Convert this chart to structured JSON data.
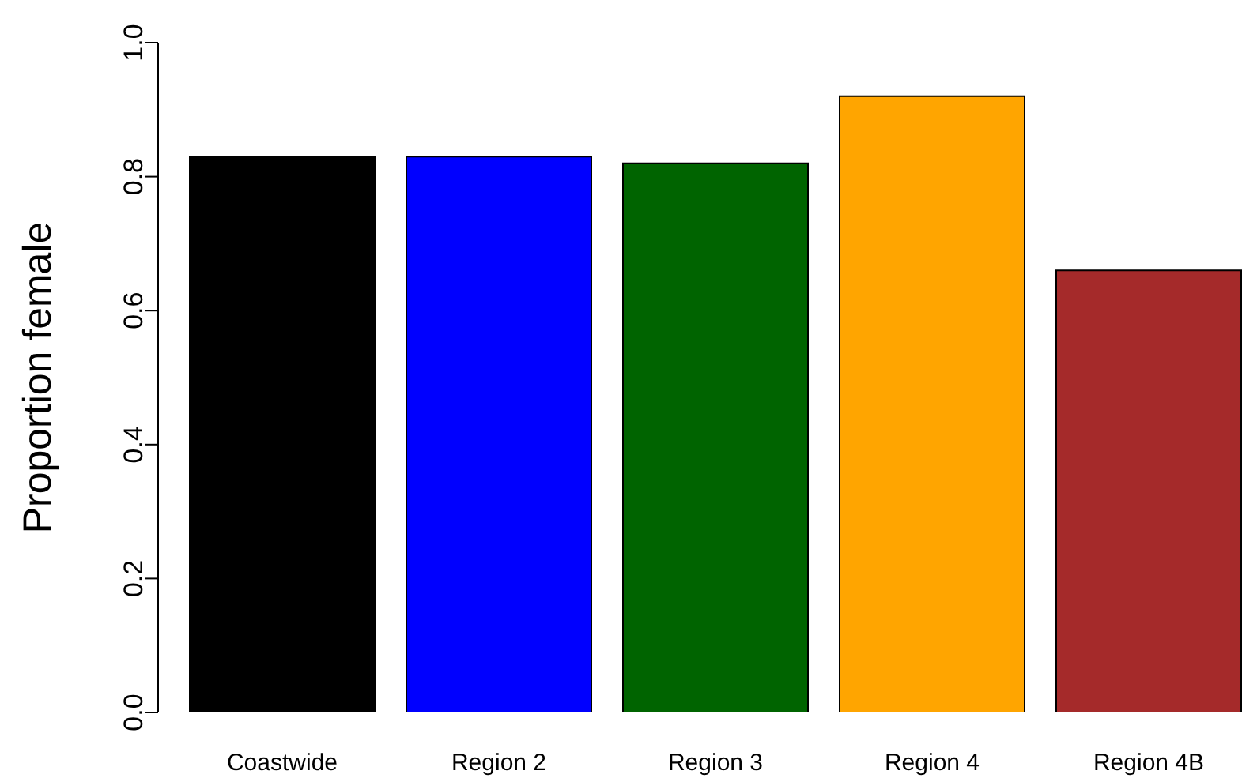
{
  "chart_data": {
    "type": "bar",
    "ylabel": "Proportion female",
    "categories": [
      "Coastwide",
      "Region 2",
      "Region 3",
      "Region 4",
      "Region 4B"
    ],
    "values": [
      0.83,
      0.83,
      0.82,
      0.92,
      0.66
    ],
    "colors": [
      "#000000",
      "#0000ff",
      "#006400",
      "#ffa500",
      "#a52a2a"
    ],
    "ylim": [
      0,
      1
    ],
    "yticks": [
      {
        "value": 0,
        "label": "0.0"
      },
      {
        "value": 0.2,
        "label": "0.2"
      },
      {
        "value": 0.4,
        "label": "0.4"
      },
      {
        "value": 0.6,
        "label": "0.6"
      },
      {
        "value": 0.8,
        "label": "0.8"
      },
      {
        "value": 1,
        "label": "1.0"
      }
    ],
    "grid": false,
    "legend": false
  }
}
